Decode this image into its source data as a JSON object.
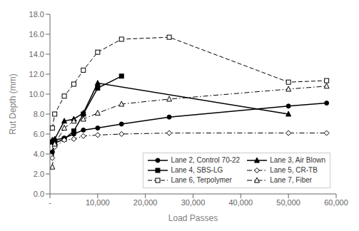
{
  "chart_data": {
    "type": "line",
    "xlabel": "Load Passes",
    "ylabel": "Rut Depth (mm)",
    "xlim": [
      0,
      60000
    ],
    "ylim": [
      0.0,
      18.0
    ],
    "xticks": [
      {
        "value": 0,
        "label": "-"
      },
      {
        "value": 10000,
        "label": "10,000"
      },
      {
        "value": 20000,
        "label": "20,000"
      },
      {
        "value": 30000,
        "label": "30,000"
      },
      {
        "value": 40000,
        "label": "40,000"
      },
      {
        "value": 50000,
        "label": "50,000"
      },
      {
        "value": 60000,
        "label": "60,000"
      }
    ],
    "yticks": [
      {
        "value": 0.0,
        "label": "0.0"
      },
      {
        "value": 2.0,
        "label": "2.0"
      },
      {
        "value": 4.0,
        "label": "4.0"
      },
      {
        "value": 6.0,
        "label": "6.0"
      },
      {
        "value": 8.0,
        "label": "8.0"
      },
      {
        "value": 10.0,
        "label": "10.0"
      },
      {
        "value": 12.0,
        "label": "12.0"
      },
      {
        "value": 14.0,
        "label": "14.0"
      },
      {
        "value": 16.0,
        "label": "16.0"
      },
      {
        "value": 18.0,
        "label": "18.0"
      }
    ],
    "grid": false,
    "legend": "lower right",
    "series": [
      {
        "name": "Lane 2, Control 70-22",
        "color": "#000000",
        "marker": "circle",
        "line_style": "solid",
        "x": [
          500,
          1000,
          3000,
          5000,
          7000,
          10000,
          15000,
          25000,
          50000,
          58000
        ],
        "values": [
          4.2,
          5.4,
          5.6,
          6.0,
          6.4,
          6.6,
          7.0,
          7.7,
          8.8,
          9.1
        ]
      },
      {
        "name": "Lane 3, Air Blown",
        "color": "#000000",
        "marker": "triangle",
        "line_style": "solid",
        "x": [
          500,
          1000,
          3000,
          5000,
          7000,
          10000,
          50000
        ],
        "values": [
          5.4,
          5.5,
          7.3,
          7.5,
          8.1,
          11.1,
          8.0
        ]
      },
      {
        "name": "Lane 4, SBS-LG",
        "color": "#000000",
        "marker": "square",
        "line_style": "solid",
        "x": [
          500,
          1000,
          3000,
          5000,
          7000,
          10000,
          15000
        ],
        "values": [
          5.2,
          5.1,
          5.5,
          6.3,
          8.0,
          10.6,
          11.8
        ]
      },
      {
        "name": "Lane 5, CR-TB",
        "color": "#000000",
        "marker": "open_diamond",
        "line_style": "dashdot",
        "x": [
          500,
          1000,
          3000,
          5000,
          7000,
          10000,
          15000,
          25000,
          50000,
          58000
        ],
        "values": [
          3.6,
          4.7,
          5.4,
          5.5,
          5.8,
          5.9,
          6.0,
          6.1,
          6.1,
          6.1
        ]
      },
      {
        "name": "Lane 6, Terpolymer",
        "color": "#000000",
        "marker": "open_square",
        "line_style": "dashed",
        "x": [
          500,
          1000,
          3000,
          5000,
          7000,
          10000,
          15000,
          25000,
          50000,
          58000
        ],
        "values": [
          6.6,
          8.0,
          9.8,
          11.0,
          12.4,
          14.2,
          15.5,
          15.7,
          11.2,
          11.35
        ]
      },
      {
        "name": "Lane 7, Fiber",
        "color": "#000000",
        "marker": "open_triangle",
        "line_style": "dashdot",
        "x": [
          500,
          1000,
          3000,
          5000,
          7000,
          10000,
          15000,
          25000,
          50000,
          58000
        ],
        "values": [
          2.7,
          5.0,
          6.6,
          7.3,
          7.5,
          8.1,
          9.0,
          9.5,
          10.5,
          10.8
        ]
      }
    ]
  }
}
